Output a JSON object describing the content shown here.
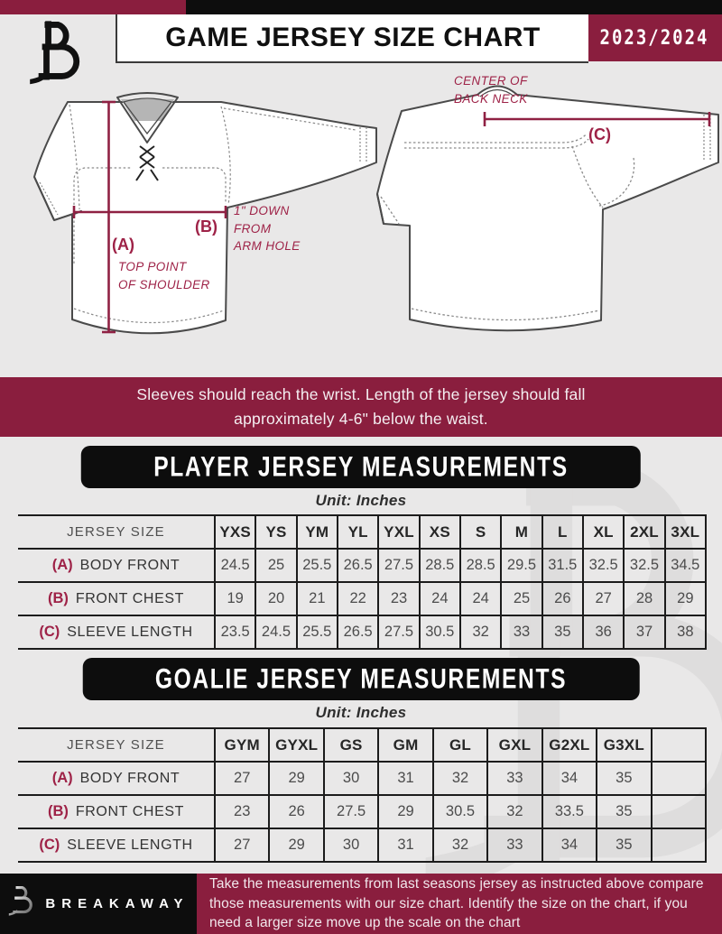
{
  "header": {
    "title": "GAME JERSEY SIZE CHART",
    "season": "2023/2024"
  },
  "diagram": {
    "front": {
      "a_label": "(A)",
      "a_note": "TOP POINT\nOF SHOULDER",
      "b_label": "(B)",
      "b_note": "1\" DOWN\nFROM\nARM HOLE"
    },
    "back": {
      "c_label": "(C)",
      "c_note": "CENTER OF\nBACK NECK"
    }
  },
  "banner": {
    "text": "Sleeves should reach the wrist. Length of the jersey should fall approximately 4-6\" below the waist."
  },
  "player_section": {
    "title": "PLAYER JERSEY MEASUREMENTS",
    "unit": "Unit: Inches"
  },
  "goalie_section": {
    "title": "GOALIE JERSEY MEASUREMENTS",
    "unit": "Unit: Inches"
  },
  "player_table": {
    "header_label": "JERSEY SIZE",
    "sizes": [
      "YXS",
      "YS",
      "YM",
      "YL",
      "YXL",
      "XS",
      "S",
      "M",
      "L",
      "XL",
      "2XL",
      "3XL"
    ],
    "rows": [
      {
        "key": "(A)",
        "label": "BODY FRONT",
        "values": [
          "24.5",
          "25",
          "25.5",
          "26.5",
          "27.5",
          "28.5",
          "28.5",
          "29.5",
          "31.5",
          "32.5",
          "32.5",
          "34.5"
        ]
      },
      {
        "key": "(B)",
        "label": "FRONT CHEST",
        "values": [
          "19",
          "20",
          "21",
          "22",
          "23",
          "24",
          "24",
          "25",
          "26",
          "27",
          "28",
          "29"
        ]
      },
      {
        "key": "(C)",
        "label": "SLEEVE LENGTH",
        "values": [
          "23.5",
          "24.5",
          "25.5",
          "26.5",
          "27.5",
          "30.5",
          "32",
          "33",
          "35",
          "36",
          "37",
          "38"
        ]
      }
    ]
  },
  "goalie_table": {
    "header_label": "JERSEY SIZE",
    "sizes": [
      "GYM",
      "GYXL",
      "GS",
      "GM",
      "GL",
      "GXL",
      "G2XL",
      "G3XL",
      ""
    ],
    "rows": [
      {
        "key": "(A)",
        "label": "BODY FRONT",
        "values": [
          "27",
          "29",
          "30",
          "31",
          "32",
          "33",
          "34",
          "35",
          ""
        ]
      },
      {
        "key": "(B)",
        "label": "FRONT CHEST",
        "values": [
          "23",
          "26",
          "27.5",
          "29",
          "30.5",
          "32",
          "33.5",
          "35",
          ""
        ]
      },
      {
        "key": "(C)",
        "label": "SLEEVE LENGTH",
        "values": [
          "27",
          "29",
          "30",
          "31",
          "32",
          "33",
          "34",
          "35",
          ""
        ]
      }
    ]
  },
  "footer": {
    "brand": "BREAKAWAY",
    "note": "Take the measurements from last seasons jersey as instructed above compare those measurements  with our size chart. Identify the size on the chart, if you need a larger size move up the scale on the chart"
  },
  "colors": {
    "maroon": "#8a1e3e",
    "label_red": "#9e2247",
    "black": "#0d0d0d",
    "background": "#e9e8e8",
    "watermark": "#dedddd"
  }
}
